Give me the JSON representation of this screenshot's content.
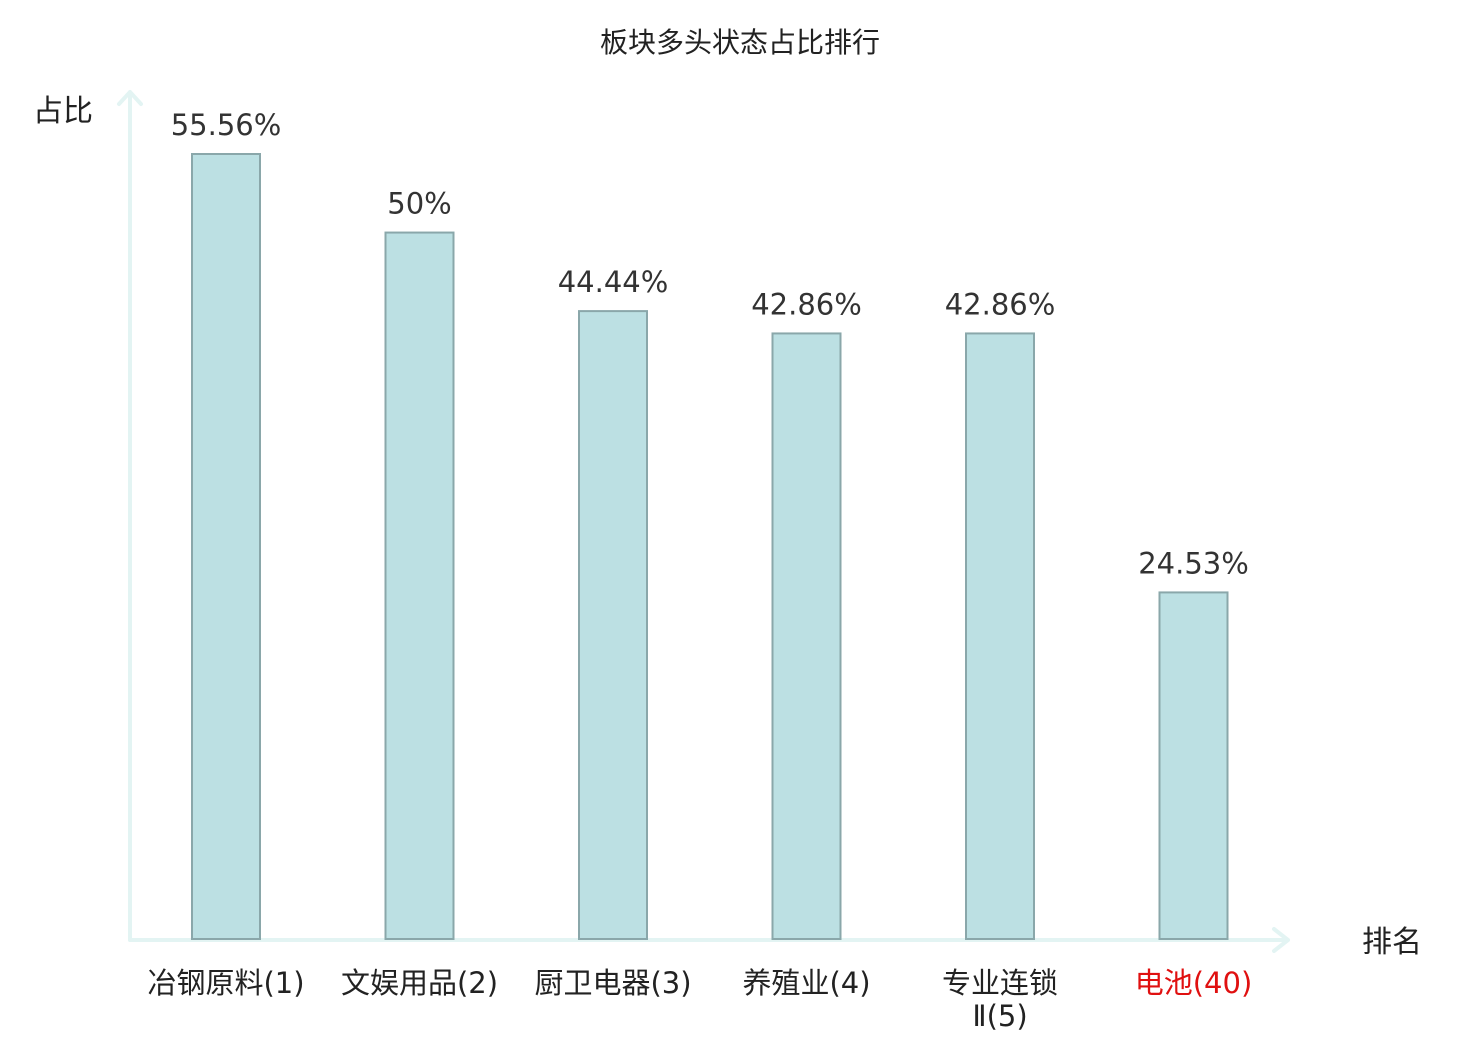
{
  "chart_data": {
    "type": "bar",
    "title": "板块多头状态占比排行",
    "xlabel": "排名",
    "ylabel": "占比",
    "categories": [
      "冶钢原料(1)",
      "文娱用品(2)",
      "厨卫电器(3)",
      "养殖业(4)",
      "专业连锁Ⅱ(5)",
      "电池(40)"
    ],
    "values": [
      55.56,
      50,
      44.44,
      42.86,
      42.86,
      24.53
    ],
    "value_labels": [
      "55.56%",
      "50%",
      "44.44%",
      "42.86%",
      "42.86%",
      "24.53%"
    ],
    "highlight_category": "电池(40)",
    "ylim": [
      0,
      60
    ],
    "grid": false,
    "legend": "none",
    "bar_color": "#bce0e3",
    "bar_edge_color": "#8aa7aa",
    "axis_color": "#e3f4f3",
    "highlight_color": "#e01010"
  }
}
